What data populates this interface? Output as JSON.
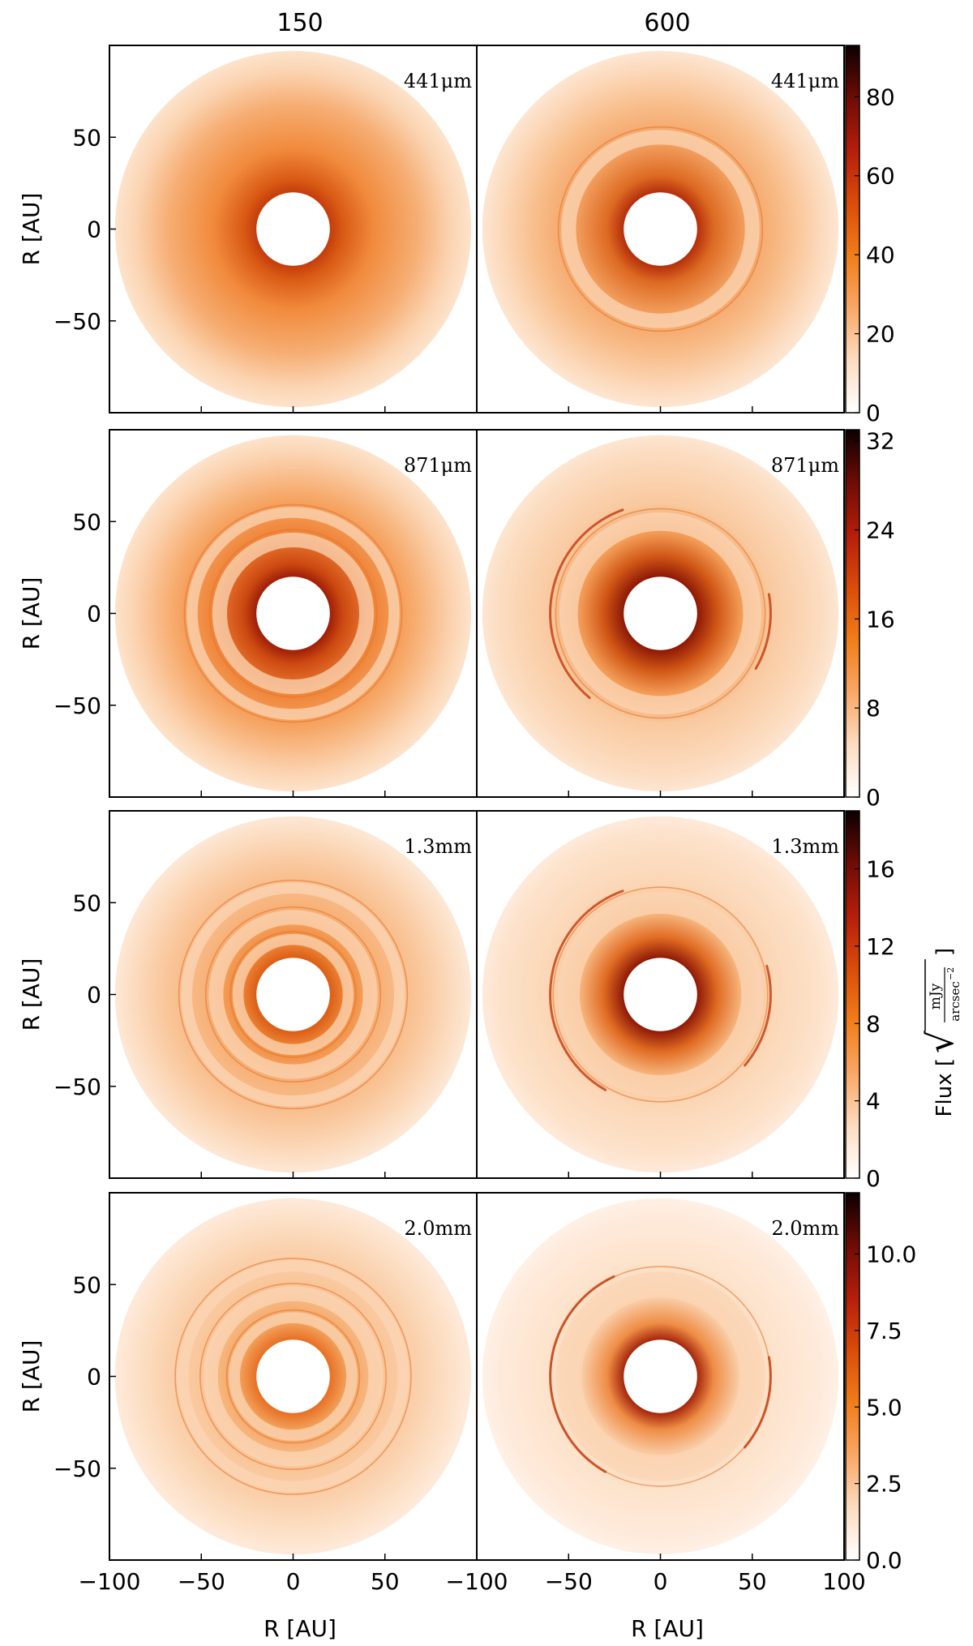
{
  "chart_data": {
    "type": "heatmap",
    "title": "",
    "description_series": "Simulated disk continuum images; columns are two cases, rows are wavelengths",
    "columns": [
      "150",
      "600"
    ],
    "xlabel": "R [AU]",
    "ylabel": "R [AU]",
    "xlim": [
      -100,
      100
    ],
    "ylim": [
      -100,
      100
    ],
    "x_ticks": [
      "−100",
      "−50",
      "0",
      "50",
      "−100",
      "−50",
      "0",
      "50",
      "100"
    ],
    "y_ticks": [
      [
        "50",
        "0",
        "−50"
      ],
      [
        "50",
        "0",
        "−50"
      ],
      [
        "50",
        "0",
        "−50"
      ],
      [
        "50",
        "0",
        "−50"
      ]
    ],
    "colorbar_label": "Flux [√(mJy/arcsec⁻²)]",
    "colorbar_label_parts": {
      "prefix": "Flux [",
      "num": "mJy",
      "den": "arcsec",
      "den_exp": "−2",
      "suffix": "]"
    },
    "colormap": [
      "#ffffff",
      "#fcdcc0",
      "#f9a766",
      "#f07d1a",
      "#d94c0a",
      "#b51e0b",
      "#6e0c05",
      "#0b0000"
    ],
    "disk": {
      "outer_radius_au": 97,
      "inner_hole_radius_au": 20
    },
    "rows": [
      {
        "wavelength": "441μm",
        "cbar_range": [
          0,
          93
        ],
        "cbar_ticks": [
          "0",
          "20",
          "40",
          "60",
          "80"
        ],
        "cbar_tick_values": [
          0,
          20,
          40,
          60,
          80
        ],
        "panels": [
          {
            "case": "150",
            "rings": [],
            "crescents": []
          },
          {
            "case": "600",
            "rings": [
              {
                "r": 50,
                "w": 8
              }
            ],
            "crescents": []
          }
        ]
      },
      {
        "wavelength": "871μm",
        "cbar_range": [
          0,
          33
        ],
        "cbar_ticks": [
          "0",
          "8",
          "16",
          "24",
          "32"
        ],
        "cbar_tick_values": [
          0,
          8,
          16,
          24,
          32
        ],
        "panels": [
          {
            "case": "150",
            "rings": [
              {
                "r": 55,
                "w": 6
              },
              {
                "r": 40,
                "w": 8
              }
            ],
            "crescents": []
          },
          {
            "case": "600",
            "rings": [
              {
                "r": 50,
                "w": 10
              }
            ],
            "crescents": [
              {
                "r": 60,
                "from": 110,
                "to": 230
              },
              {
                "r": 60,
                "from": 330,
                "to": 370
              }
            ]
          }
        ]
      },
      {
        "wavelength": "1.3mm",
        "cbar_range": [
          0,
          19
        ],
        "cbar_ticks": [
          "0",
          "4",
          "8",
          "12",
          "16"
        ],
        "cbar_tick_values": [
          0,
          4,
          8,
          12,
          16
        ],
        "panels": [
          {
            "case": "150",
            "rings": [
              {
                "r": 58,
                "w": 6
              },
              {
                "r": 42,
                "w": 8
              },
              {
                "r": 30,
                "w": 6
              }
            ],
            "crescents": []
          },
          {
            "case": "600",
            "rings": [
              {
                "r": 50,
                "w": 12
              }
            ],
            "crescents": [
              {
                "r": 60,
                "from": 110,
                "to": 240
              },
              {
                "r": 60,
                "from": 320,
                "to": 375
              }
            ]
          }
        ]
      },
      {
        "wavelength": "2.0mm",
        "cbar_range": [
          0,
          12
        ],
        "cbar_ticks": [
          "0.0",
          "2.5",
          "5.0",
          "7.5",
          "10.0"
        ],
        "cbar_tick_values": [
          0,
          2.5,
          5,
          7.5,
          10
        ],
        "panels": [
          {
            "case": "150",
            "rings": [
              {
                "r": 60,
                "w": 6
              },
              {
                "r": 45,
                "w": 8
              },
              {
                "r": 32,
                "w": 6
              }
            ],
            "crescents": []
          },
          {
            "case": "600",
            "rings": [
              {
                "r": 50,
                "w": 14
              }
            ],
            "crescents": [
              {
                "r": 60,
                "from": 115,
                "to": 240
              },
              {
                "r": 60,
                "from": 320,
                "to": 370
              }
            ]
          }
        ]
      }
    ]
  }
}
